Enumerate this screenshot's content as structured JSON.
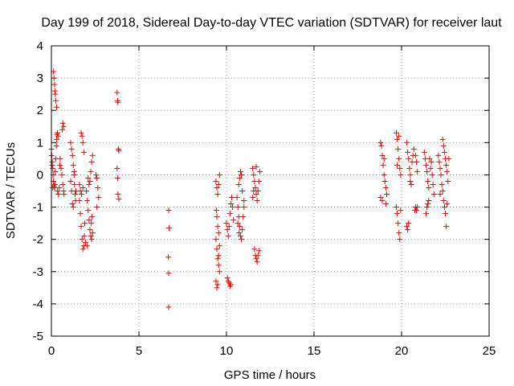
{
  "chart_data": {
    "type": "scatter",
    "title": "Day 199 of 2018, Sidereal Day-to-day VTEC variation (SDTVAR) for receiver laut",
    "xlabel": "GPS time / hours",
    "ylabel": "SDTVAR / TECUs",
    "xlim": [
      0,
      25
    ],
    "ylim": [
      -5,
      4
    ],
    "xticks": [
      0,
      5,
      10,
      15,
      20,
      25
    ],
    "yticks": [
      -5,
      -4,
      -3,
      -2,
      -1,
      0,
      1,
      2,
      3,
      4
    ],
    "grid": true,
    "marker": "+",
    "color": "#ff0000",
    "series": [
      {
        "name": "SDTVAR",
        "points": [
          [
            0.0,
            0.8
          ],
          [
            0.02,
            0.6
          ],
          [
            0.05,
            0.4
          ],
          [
            0.08,
            0.2
          ],
          [
            0.1,
            0.0
          ],
          [
            0.12,
            -0.2
          ],
          [
            0.15,
            -0.35
          ],
          [
            0.18,
            -0.4
          ],
          [
            0.2,
            -0.3
          ],
          [
            0.22,
            0.1
          ],
          [
            0.25,
            0.5
          ],
          [
            0.28,
            0.9
          ],
          [
            0.3,
            1.1
          ],
          [
            0.32,
            1.25
          ],
          [
            0.35,
            1.3
          ],
          [
            0.38,
            1.2
          ],
          [
            0.12,
            3.2
          ],
          [
            0.15,
            3.0
          ],
          [
            0.18,
            2.8
          ],
          [
            0.2,
            2.6
          ],
          [
            0.22,
            2.5
          ],
          [
            0.25,
            2.3
          ],
          [
            0.3,
            2.1
          ],
          [
            0.05,
            0.3
          ],
          [
            0.08,
            -0.4
          ],
          [
            0.35,
            -0.5
          ],
          [
            0.4,
            -0.6
          ],
          [
            0.45,
            -0.4
          ],
          [
            0.48,
            0.3
          ],
          [
            0.5,
            0.5
          ],
          [
            0.55,
            0.2
          ],
          [
            0.6,
            0.0
          ],
          [
            0.65,
            -0.3
          ],
          [
            0.7,
            -0.5
          ],
          [
            0.62,
            1.4
          ],
          [
            0.65,
            1.6
          ],
          [
            0.7,
            1.5
          ],
          [
            0.72,
            -0.6
          ],
          [
            1.1,
            1.0
          ],
          [
            1.15,
            0.8
          ],
          [
            1.2,
            0.6
          ],
          [
            1.25,
            0.3
          ],
          [
            1.3,
            0.0
          ],
          [
            1.32,
            -0.3
          ],
          [
            1.35,
            -0.6
          ],
          [
            1.38,
            -0.8
          ],
          [
            1.4,
            -0.5
          ],
          [
            1.1,
            -0.2
          ],
          [
            1.15,
            -0.5
          ],
          [
            1.2,
            -0.9
          ],
          [
            1.25,
            -1.0
          ],
          [
            1.3,
            0.1
          ],
          [
            1.6,
            -0.8
          ],
          [
            1.65,
            -1.2
          ],
          [
            1.7,
            -1.6
          ],
          [
            1.75,
            -2.0
          ],
          [
            1.8,
            -2.3
          ],
          [
            1.85,
            -2.2
          ],
          [
            1.88,
            -1.9
          ],
          [
            1.9,
            -1.5
          ],
          [
            1.7,
            1.3
          ],
          [
            1.75,
            1.2
          ],
          [
            1.8,
            1.0
          ],
          [
            1.85,
            0.7
          ],
          [
            1.6,
            -0.3
          ],
          [
            1.65,
            -0.5
          ],
          [
            1.72,
            -0.6
          ],
          [
            1.8,
            -0.4
          ],
          [
            2.0,
            -0.5
          ],
          [
            2.05,
            -0.8
          ],
          [
            2.1,
            -1.1
          ],
          [
            2.15,
            -1.4
          ],
          [
            2.2,
            -1.7
          ],
          [
            2.25,
            -1.9
          ],
          [
            2.3,
            -2.0
          ],
          [
            2.35,
            -1.8
          ],
          [
            2.2,
            -0.2
          ],
          [
            2.25,
            0.1
          ],
          [
            2.3,
            0.4
          ],
          [
            2.35,
            0.6
          ],
          [
            2.1,
            -0.1
          ],
          [
            2.15,
            -0.3
          ],
          [
            2.28,
            -1.5
          ],
          [
            2.32,
            -1.3
          ],
          [
            1.95,
            -2.1
          ],
          [
            2.05,
            -2.2
          ],
          [
            2.6,
            -0.1
          ],
          [
            2.65,
            -0.4
          ],
          [
            2.7,
            -0.7
          ],
          [
            2.6,
            -1.0
          ],
          [
            2.55,
            0.0
          ],
          [
            3.75,
            2.55
          ],
          [
            3.78,
            2.3
          ],
          [
            3.8,
            2.25
          ],
          [
            3.82,
            0.8
          ],
          [
            3.85,
            0.75
          ],
          [
            3.75,
            0.2
          ],
          [
            3.78,
            -0.1
          ],
          [
            3.8,
            -0.6
          ],
          [
            3.85,
            -0.75
          ],
          [
            6.7,
            -1.1
          ],
          [
            6.72,
            -1.65
          ],
          [
            6.68,
            -2.55
          ],
          [
            6.7,
            -3.05
          ],
          [
            6.7,
            -4.1
          ],
          [
            9.4,
            -0.2
          ],
          [
            9.45,
            -0.4
          ],
          [
            9.5,
            -0.6
          ],
          [
            9.55,
            -0.3
          ],
          [
            9.6,
            0.0
          ],
          [
            9.45,
            -1.3
          ],
          [
            9.5,
            -1.6
          ],
          [
            9.55,
            -1.8
          ],
          [
            9.4,
            -2.0
          ],
          [
            9.45,
            -2.3
          ],
          [
            9.5,
            -2.6
          ],
          [
            9.55,
            -2.8
          ],
          [
            9.6,
            -3.0
          ],
          [
            9.4,
            -3.3
          ],
          [
            9.45,
            -3.5
          ],
          [
            9.5,
            -3.4
          ],
          [
            9.55,
            -2.5
          ],
          [
            9.6,
            -2.2
          ],
          [
            9.42,
            -1.1
          ],
          [
            10.05,
            -3.2
          ],
          [
            10.1,
            -3.3
          ],
          [
            10.15,
            -3.35
          ],
          [
            10.2,
            -3.45
          ],
          [
            10.25,
            -3.4
          ],
          [
            10.0,
            -1.5
          ],
          [
            10.05,
            -1.7
          ],
          [
            10.1,
            -1.9
          ],
          [
            10.15,
            -1.6
          ],
          [
            10.2,
            -1.2
          ],
          [
            10.25,
            -0.9
          ],
          [
            10.3,
            -0.7
          ],
          [
            10.35,
            -1.0
          ],
          [
            10.4,
            -1.4
          ],
          [
            10.6,
            -0.7
          ],
          [
            10.65,
            -1.0
          ],
          [
            10.7,
            -1.3
          ],
          [
            10.75,
            -1.6
          ],
          [
            10.8,
            -1.9
          ],
          [
            10.85,
            -2.0
          ],
          [
            10.9,
            -1.7
          ],
          [
            10.95,
            -1.3
          ],
          [
            11.0,
            -1.0
          ],
          [
            10.7,
            -0.3
          ],
          [
            10.75,
            -0.1
          ],
          [
            10.8,
            0.1
          ],
          [
            10.85,
            0.0
          ],
          [
            10.9,
            -0.5
          ],
          [
            11.0,
            -0.8
          ],
          [
            10.65,
            -1.5
          ],
          [
            10.72,
            -1.8
          ],
          [
            11.5,
            0.2
          ],
          [
            11.55,
            0.0
          ],
          [
            11.6,
            -0.2
          ],
          [
            11.65,
            -0.4
          ],
          [
            11.7,
            -0.6
          ],
          [
            11.75,
            -0.8
          ],
          [
            11.8,
            -0.5
          ],
          [
            11.85,
            -0.2
          ],
          [
            11.9,
            0.1
          ],
          [
            11.6,
            -2.3
          ],
          [
            11.65,
            -2.5
          ],
          [
            11.7,
            -2.6
          ],
          [
            11.75,
            -2.7
          ],
          [
            11.8,
            -2.5
          ],
          [
            11.85,
            -2.35
          ],
          [
            11.5,
            -0.7
          ],
          [
            11.55,
            -0.5
          ],
          [
            11.7,
            0.25
          ],
          [
            18.8,
            1.0
          ],
          [
            18.85,
            0.9
          ],
          [
            18.9,
            0.6
          ],
          [
            18.95,
            0.3
          ],
          [
            19.0,
            0.0
          ],
          [
            19.05,
            -0.2
          ],
          [
            19.1,
            -0.4
          ],
          [
            19.15,
            -0.6
          ],
          [
            18.8,
            -0.7
          ],
          [
            18.9,
            -0.8
          ],
          [
            19.0,
            0.5
          ],
          [
            19.1,
            -0.9
          ],
          [
            19.7,
            1.3
          ],
          [
            19.75,
            1.1
          ],
          [
            19.8,
            0.8
          ],
          [
            19.85,
            0.5
          ],
          [
            19.9,
            0.2
          ],
          [
            19.95,
            0.0
          ],
          [
            19.7,
            -1.0
          ],
          [
            19.75,
            -1.2
          ],
          [
            19.8,
            -1.5
          ],
          [
            19.85,
            -1.8
          ],
          [
            19.9,
            -2.0
          ],
          [
            19.95,
            -1.1
          ],
          [
            19.75,
            0.3
          ],
          [
            19.85,
            1.2
          ],
          [
            20.3,
            1.0
          ],
          [
            20.35,
            0.7
          ],
          [
            20.4,
            0.5
          ],
          [
            20.45,
            0.2
          ],
          [
            20.5,
            0.0
          ],
          [
            20.55,
            -0.3
          ],
          [
            20.6,
            0.4
          ],
          [
            20.65,
            0.6
          ],
          [
            20.7,
            0.8
          ],
          [
            20.3,
            -1.6
          ],
          [
            20.35,
            -1.7
          ],
          [
            20.4,
            -1.5
          ],
          [
            20.5,
            -0.2
          ],
          [
            20.8,
            0.6
          ],
          [
            20.85,
            0.4
          ],
          [
            20.9,
            0.1
          ],
          [
            20.8,
            -1.0
          ],
          [
            20.85,
            -1.1
          ],
          [
            20.9,
            -1.0
          ],
          [
            20.75,
            -1.1
          ],
          [
            21.3,
            0.7
          ],
          [
            21.35,
            0.5
          ],
          [
            21.4,
            0.3
          ],
          [
            21.45,
            0.1
          ],
          [
            21.5,
            -0.2
          ],
          [
            21.55,
            -0.4
          ],
          [
            21.6,
            0.5
          ],
          [
            21.65,
            0.2
          ],
          [
            21.7,
            0.4
          ],
          [
            21.75,
            0.0
          ],
          [
            21.8,
            -0.3
          ],
          [
            21.85,
            -0.6
          ],
          [
            21.4,
            -1.2
          ],
          [
            21.45,
            -1.0
          ],
          [
            21.5,
            -0.9
          ],
          [
            21.55,
            -0.8
          ],
          [
            22.1,
            0.6
          ],
          [
            22.15,
            0.4
          ],
          [
            22.2,
            0.2
          ],
          [
            22.25,
            0.0
          ],
          [
            22.3,
            -0.3
          ],
          [
            22.35,
            -0.5
          ],
          [
            22.4,
            -0.8
          ],
          [
            22.45,
            -1.0
          ],
          [
            22.5,
            -1.2
          ],
          [
            22.55,
            -1.6
          ],
          [
            22.6,
            -0.9
          ],
          [
            22.35,
            1.1
          ],
          [
            22.4,
            0.9
          ],
          [
            22.45,
            0.7
          ],
          [
            22.5,
            0.5
          ],
          [
            22.55,
            0.3
          ],
          [
            22.6,
            0.1
          ],
          [
            22.65,
            -0.2
          ],
          [
            22.7,
            0.5
          ],
          [
            22.2,
            -0.6
          ]
        ]
      }
    ]
  }
}
